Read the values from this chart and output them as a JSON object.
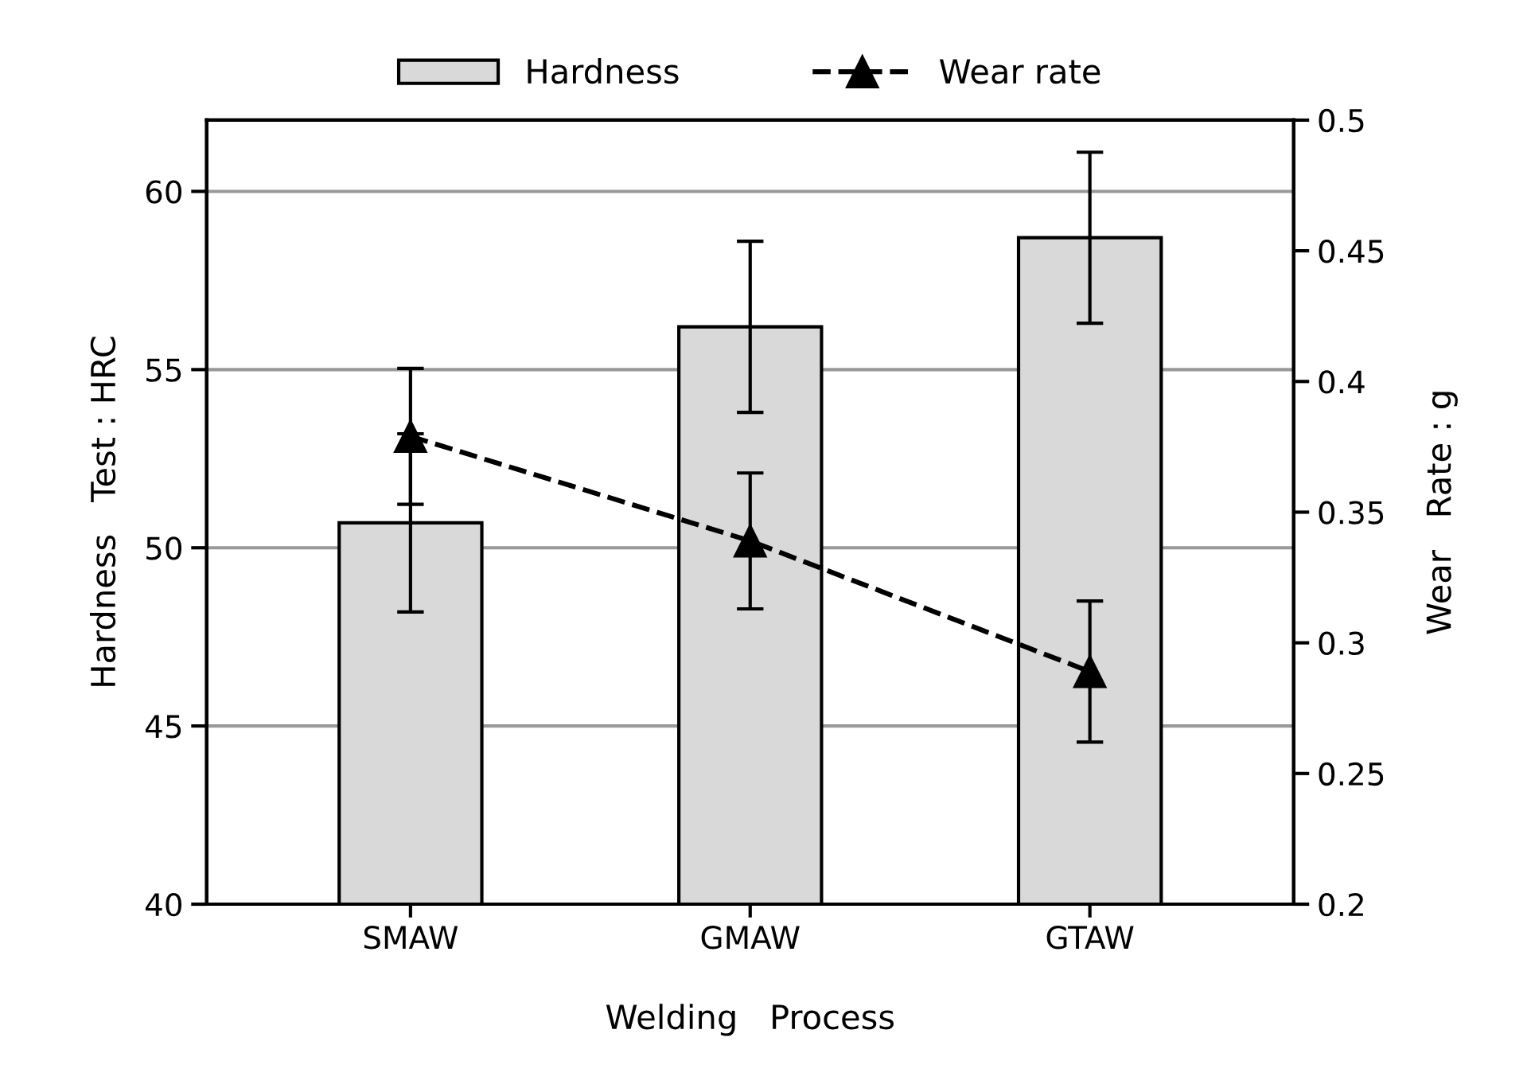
{
  "chart_data": {
    "type": "bar",
    "xlabel": "Welding   Process",
    "ylabel": "Hardness   Test : HRC",
    "y2label": "Wear   Rate : g",
    "categories": [
      "SMAW",
      "GMAW",
      "GTAW"
    ],
    "series": [
      {
        "name": "Hardness",
        "color": "#d9d9d9",
        "values": [
          50.7,
          56.2,
          58.7
        ],
        "errors": [
          2.5,
          2.4,
          2.4
        ]
      },
      {
        "name": "Wear rate",
        "type": "line",
        "axis": "y2",
        "color": "#000000",
        "values": [
          0.379,
          0.339,
          0.289
        ],
        "errors": [
          0.026,
          0.026,
          0.027
        ],
        "marker": "triangle",
        "line_style": "dashed"
      }
    ],
    "ylim": [
      40,
      62
    ],
    "yticks": [
      40,
      45,
      50,
      55,
      60
    ],
    "y2lim": [
      0.2,
      0.5
    ],
    "y2ticks": [
      {
        "value": 0.2,
        "label": "0.2"
      },
      {
        "value": 0.25,
        "label": "0.25"
      },
      {
        "value": 0.3,
        "label": "0.3"
      },
      {
        "value": 0.35,
        "label": "0.35"
      },
      {
        "value": 0.4,
        "label": "0.4"
      },
      {
        "value": 0.45,
        "label": "0.45"
      },
      {
        "value": 0.5,
        "label": "0.5"
      }
    ],
    "grid": "y",
    "legend": "top"
  }
}
